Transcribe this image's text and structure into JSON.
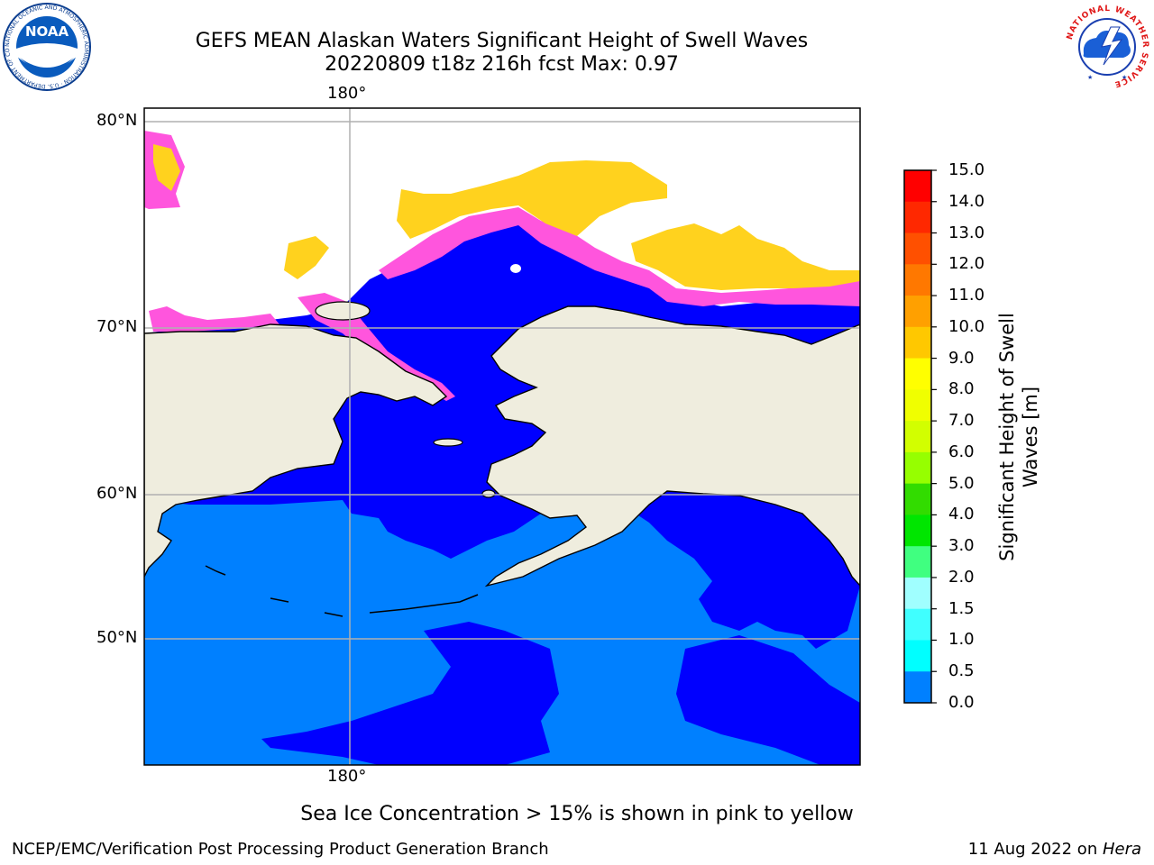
{
  "title": {
    "line1": "GEFS MEAN Alaskan Waters Significant Height of Swell Waves",
    "line2": "20220809 t18z 216h fcst   Max: 0.97"
  },
  "map": {
    "lon_top_label": "180°",
    "lon_bottom_label": "180°",
    "lat_labels": [
      "80°N",
      "70°N",
      "60°N",
      "50°N"
    ],
    "colors": {
      "land": "#efedde",
      "ocean_low": "#0000ff",
      "ocean_mid": "#0080ff",
      "ice_pink": "#ff55dd",
      "ice_yellow": "#ffd21e",
      "grid": "#b0b0b0"
    }
  },
  "colorbar": {
    "label": "Significant Height of Swell Waves [m]",
    "ticks": [
      "15.0",
      "14.0",
      "13.0",
      "12.0",
      "11.0",
      "10.0",
      "9.0",
      "8.0",
      "7.0",
      "6.0",
      "5.0",
      "4.0",
      "3.0",
      "2.0",
      "1.5",
      "1.0",
      "0.5",
      "0.0"
    ],
    "colors": [
      "#ff0000",
      "#ff2800",
      "#ff5000",
      "#ff7800",
      "#ffa000",
      "#ffc800",
      "#ffff00",
      "#f0ff00",
      "#d2ff00",
      "#96ff00",
      "#32dc00",
      "#00e600",
      "#40ff80",
      "#a0ffff",
      "#40ffff",
      "#00ffff",
      "#0080ff",
      "#0000ff"
    ]
  },
  "logos": {
    "noaa_text": "NOAA",
    "noaa_ring": "NATIONAL OCEANIC AND ATMOSPHERIC ADMINISTRATION · U.S. DEPARTMENT OF COMMERCE",
    "nws_ring": "NATIONAL WEATHER SERVICE"
  },
  "footer": {
    "note": "Sea Ice Concentration > 15% is shown in pink to yellow",
    "left": "NCEP/EMC/Verification Post Processing Product Generation Branch",
    "right_date": "11 Aug 2022 on ",
    "right_host": "Hera"
  }
}
